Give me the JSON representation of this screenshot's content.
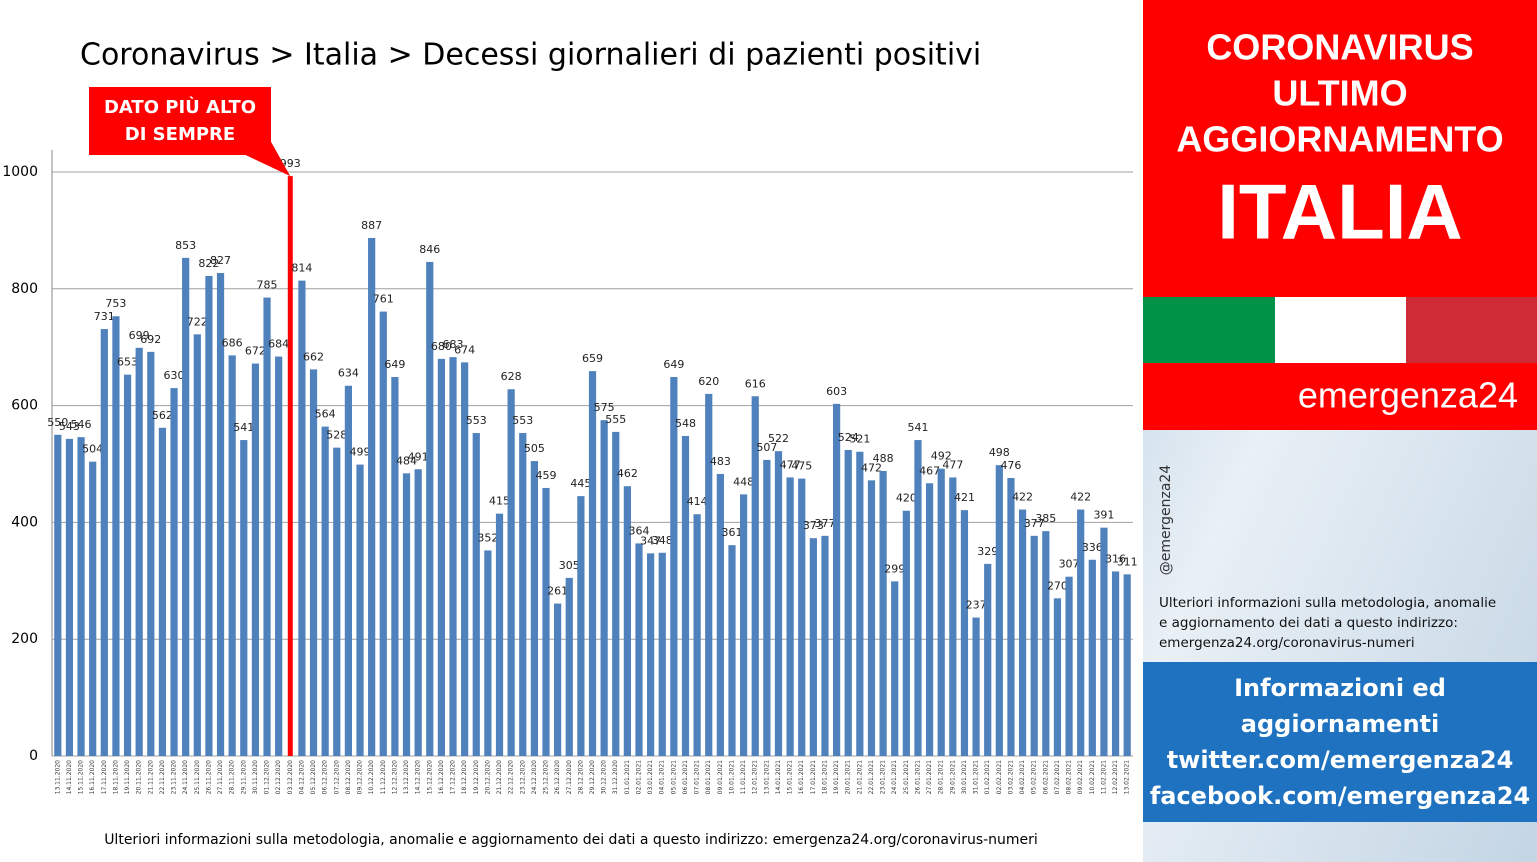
{
  "chart_data": {
    "type": "bar",
    "title": "Coronavirus > Italia > Decessi giornalieri di pazienti positivi",
    "categories": [
      "13.11.2020",
      "14.11.2020",
      "15.11.2020",
      "16.11.2020",
      "17.11.2020",
      "18.11.2020",
      "19.11.2020",
      "20.11.2020",
      "21.11.2020",
      "22.11.2020",
      "23.11.2020",
      "24.11.2020",
      "25.11.2020",
      "26.11.2020",
      "27.11.2020",
      "28.11.2020",
      "29.11.2020",
      "30.11.2020",
      "01.12.2020",
      "02.12.2020",
      "03.12.2020",
      "04.12.2020",
      "05.12.2020",
      "06.12.2020",
      "07.12.2020",
      "08.12.2020",
      "09.12.2020",
      "10.12.2020",
      "11.12.2020",
      "12.12.2020",
      "13.12.2020",
      "14.12.2020",
      "15.12.2020",
      "16.12.2020",
      "17.12.2020",
      "18.12.2020",
      "19.12.2020",
      "20.12.2020",
      "21.12.2020",
      "22.12.2020",
      "23.12.2020",
      "24.12.2020",
      "25.12.2020",
      "26.12.2020",
      "27.12.2020",
      "28.12.2020",
      "29.12.2020",
      "30.12.2020",
      "31.12.2020",
      "01.01.2021",
      "02.01.2021",
      "03.01.2021",
      "04.01.2021",
      "05.01.2021",
      "06.01.2021",
      "07.01.2021",
      "08.01.2021",
      "09.01.2021",
      "10.01.2021",
      "11.01.2021",
      "12.01.2021",
      "13.01.2021",
      "14.01.2021",
      "15.01.2021",
      "16.01.2021",
      "17.01.2021",
      "18.01.2021",
      "19.01.2021",
      "20.01.2021",
      "21.01.2021",
      "22.01.2021",
      "23.01.2021",
      "24.01.2021",
      "25.01.2021",
      "26.01.2021",
      "27.01.2021",
      "28.01.2021",
      "29.01.2021",
      "30.01.2021",
      "31.01.2021",
      "01.02.2021",
      "02.02.2021",
      "03.02.2021",
      "04.02.2021",
      "05.02.2021",
      "06.02.2021",
      "07.02.2021",
      "08.02.2021",
      "09.02.2021",
      "10.02.2021",
      "11.02.2021",
      "12.02.2021",
      "13.02.2021"
    ],
    "values": [
      550,
      543,
      546,
      504,
      731,
      753,
      653,
      699,
      692,
      562,
      630,
      853,
      722,
      822,
      827,
      686,
      541,
      672,
      785,
      684,
      993,
      814,
      662,
      564,
      528,
      634,
      499,
      887,
      761,
      649,
      484,
      491,
      846,
      680,
      683,
      674,
      553,
      352,
      415,
      628,
      553,
      505,
      459,
      261,
      305,
      445,
      659,
      575,
      555,
      462,
      364,
      347,
      348,
      649,
      548,
      414,
      620,
      483,
      361,
      448,
      616,
      507,
      522,
      477,
      475,
      373,
      377,
      603,
      524,
      521,
      472,
      488,
      299,
      420,
      541,
      467,
      492,
      477,
      421,
      237,
      329,
      498,
      476,
      422,
      377,
      385,
      270,
      307,
      422,
      336,
      391,
      316,
      311
    ],
    "color": "#4f81bd",
    "highlight": {
      "category": "03.12.2020",
      "color": "#ff0000",
      "annotation": [
        "DATO PIÙ ALTO",
        "DI SEMPRE"
      ]
    },
    "ylim": [
      0,
      1000
    ],
    "yticks": [
      0,
      200,
      400,
      600,
      800,
      1000
    ],
    "grid": true,
    "footnote": "Ulteriori informazioni sulla metodologia, anomalie e aggiornamento dei dati a questo indirizzo: emergenza24.org/coronavirus-numeri"
  },
  "panel": {
    "headline": [
      "CORONAVIRUS",
      "ULTIMO",
      "AGGIORNAMENTO"
    ],
    "country": "ITALIA",
    "brand": "emergenza24",
    "handle": "@emergenza24",
    "note": [
      "Ulteriori informazioni sulla metodologia, anomalie",
      "e aggiornamento dei dati a questo indirizzo:",
      "emergenza24.org/coronavirus-numeri"
    ],
    "info": [
      "Informazioni ed",
      "aggiornamenti",
      "twitter.com/emergenza24",
      "facebook.com/emergenza24"
    ]
  }
}
